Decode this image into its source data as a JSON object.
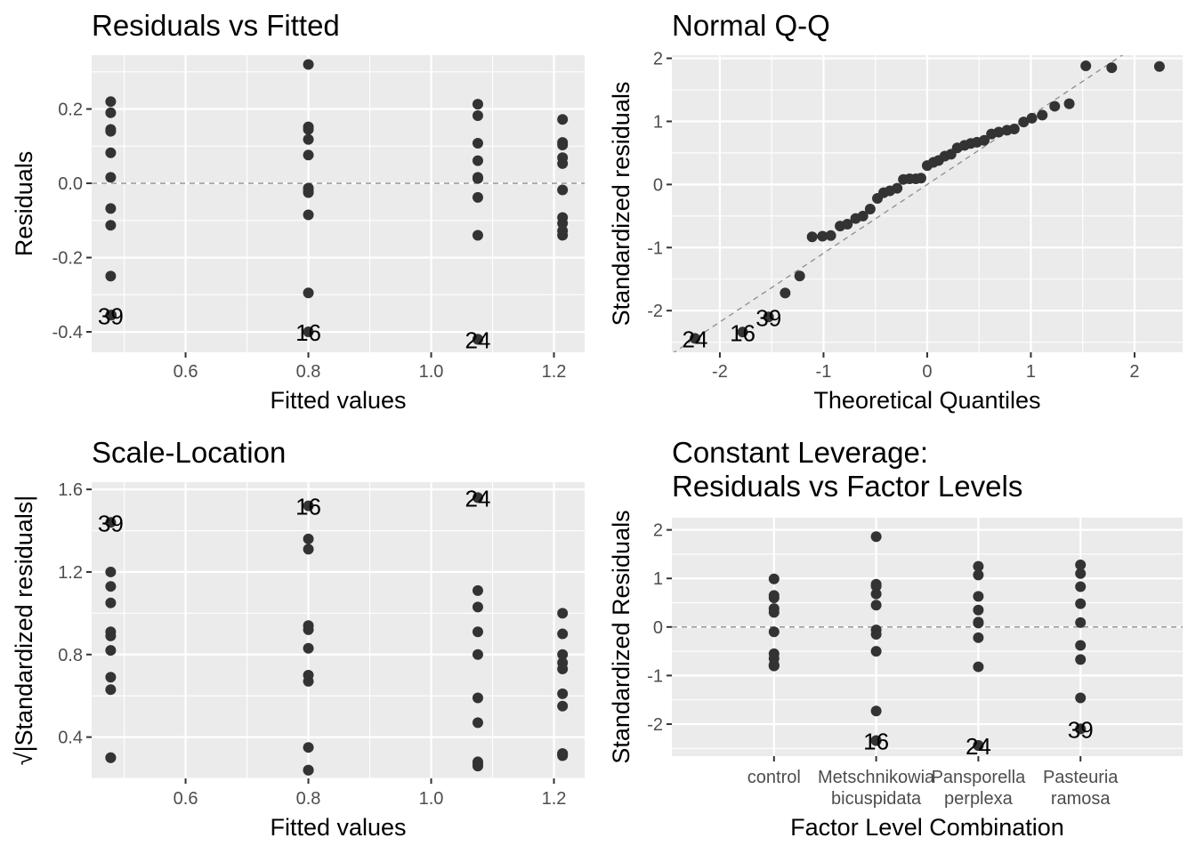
{
  "colors": {
    "panel_background": "#ebebeb",
    "grid": "#ffffff",
    "point": "#333333",
    "tick_text": "#4d4d4d",
    "reference_line": "#8c8c8c"
  },
  "chart_data": [
    {
      "id": "residuals-vs-fitted",
      "type": "scatter",
      "title_lines": [
        "Residuals vs Fitted"
      ],
      "xlabel": "Fitted values",
      "ylabel": "Residuals",
      "xlim": [
        0.447,
        1.25
      ],
      "ylim": [
        -0.455,
        0.345
      ],
      "xticks": [
        0.6,
        0.8,
        1.0,
        1.2
      ],
      "xtick_labels": [
        "0.6",
        "0.8",
        "1.0",
        "1.2"
      ],
      "yticks": [
        -0.4,
        -0.2,
        0.0,
        0.2
      ],
      "ytick_labels": [
        "-0.4",
        "-0.2",
        "0.0",
        "0.2"
      ],
      "hline": 0,
      "x": [
        0.478,
        0.478,
        0.478,
        0.478,
        0.478,
        0.478,
        0.478,
        0.478,
        0.478,
        0.478,
        0.479,
        0.8,
        0.8,
        0.8,
        0.8,
        0.8,
        0.8,
        0.8,
        0.8,
        0.8,
        0.8,
        0.8,
        1.076,
        1.076,
        1.076,
        1.076,
        1.076,
        1.076,
        1.076,
        1.076,
        1.076,
        1.076,
        1.214,
        1.214,
        1.214,
        1.214,
        1.214,
        1.214,
        1.214,
        1.214,
        1.214,
        1.214
      ],
      "y": [
        0.22,
        0.19,
        0.145,
        0.14,
        0.082,
        0.016,
        -0.068,
        -0.113,
        -0.25,
        -0.355,
        -0.355,
        0.32,
        0.152,
        0.145,
        0.118,
        0.076,
        -0.013,
        -0.02,
        -0.025,
        -0.085,
        -0.295,
        -0.4,
        0.213,
        0.182,
        0.108,
        0.061,
        0.016,
        0.013,
        -0.038,
        -0.14,
        -0.42,
        -0.42,
        0.172,
        0.11,
        0.103,
        0.069,
        0.053,
        -0.018,
        -0.092,
        -0.108,
        -0.128,
        -0.14
      ],
      "point_labels": [
        {
          "x": 0.478,
          "y": -0.355,
          "text": "39"
        },
        {
          "x": 0.8,
          "y": -0.4,
          "text": "16"
        },
        {
          "x": 1.076,
          "y": -0.42,
          "text": "24"
        }
      ]
    },
    {
      "id": "normal-qq",
      "type": "scatter",
      "title_lines": [
        "Normal Q-Q"
      ],
      "xlabel": "Theoretical Quantiles",
      "ylabel": "Standardized residuals",
      "xlim": [
        -2.463,
        2.464
      ],
      "ylim": [
        -2.66,
        2.05
      ],
      "xticks": [
        -2,
        -1,
        0,
        1,
        2
      ],
      "xtick_labels": [
        "-2",
        "-1",
        "0",
        "1",
        "2"
      ],
      "yticks": [
        -2,
        -1,
        0,
        1,
        2
      ],
      "ytick_labels": [
        "-2",
        "-1",
        "0",
        "1",
        "2"
      ],
      "reference_line": {
        "intercept": 0,
        "slope": 1.09
      },
      "x": [
        -2.24,
        -1.78,
        -1.53,
        -1.37,
        -1.23,
        -1.11,
        -1.01,
        -0.93,
        -0.84,
        -0.77,
        -0.69,
        -0.62,
        -0.55,
        -0.48,
        -0.42,
        -0.36,
        -0.29,
        -0.23,
        -0.17,
        -0.11,
        -0.06,
        0.0,
        0.06,
        0.11,
        0.17,
        0.23,
        0.29,
        0.36,
        0.42,
        0.48,
        0.55,
        0.62,
        0.69,
        0.77,
        0.84,
        0.93,
        1.01,
        1.11,
        1.23,
        1.37,
        1.53,
        1.78,
        2.24
      ],
      "y": [
        -2.44,
        -2.34,
        -2.1,
        -1.72,
        -1.45,
        -0.83,
        -0.82,
        -0.81,
        -0.66,
        -0.63,
        -0.54,
        -0.5,
        -0.39,
        -0.22,
        -0.13,
        -0.1,
        -0.06,
        0.08,
        0.09,
        0.09,
        0.1,
        0.3,
        0.35,
        0.38,
        0.45,
        0.48,
        0.58,
        0.62,
        0.65,
        0.67,
        0.7,
        0.8,
        0.83,
        0.86,
        0.88,
        0.99,
        1.05,
        1.1,
        1.24,
        1.28,
        1.88,
        1.85,
        1.87
      ],
      "point_labels": [
        {
          "x": -2.24,
          "y": -2.44,
          "text": "24"
        },
        {
          "x": -1.78,
          "y": -2.34,
          "text": "16"
        },
        {
          "x": -1.53,
          "y": -2.1,
          "text": "39"
        }
      ]
    },
    {
      "id": "scale-location",
      "type": "scatter",
      "title_lines": [
        "Scale-Location"
      ],
      "xlabel": "Fitted values",
      "ylabel": "√|Standardized residuals|",
      "xlim": [
        0.447,
        1.25
      ],
      "ylim": [
        0.2,
        1.635
      ],
      "xticks": [
        0.6,
        0.8,
        1.0,
        1.2
      ],
      "xtick_labels": [
        "0.6",
        "0.8",
        "1.0",
        "1.2"
      ],
      "yticks": [
        0.4,
        0.8,
        1.2,
        1.6
      ],
      "ytick_labels": [
        "0.4",
        "0.8",
        "1.2",
        "1.6"
      ],
      "x": [
        0.478,
        0.478,
        0.478,
        0.478,
        0.478,
        0.478,
        0.478,
        0.478,
        0.478,
        0.478,
        0.478,
        0.8,
        0.8,
        0.8,
        0.8,
        0.8,
        0.8,
        0.8,
        0.8,
        0.8,
        0.8,
        0.8,
        1.076,
        1.076,
        1.076,
        1.076,
        1.076,
        1.076,
        1.076,
        1.076,
        1.076,
        1.076,
        1.214,
        1.214,
        1.214,
        1.214,
        1.214,
        1.214,
        1.214,
        1.214,
        1.214,
        1.214
      ],
      "y": [
        1.44,
        1.2,
        1.13,
        1.05,
        0.91,
        0.89,
        0.82,
        0.69,
        0.63,
        0.3,
        0.3,
        1.52,
        1.36,
        1.31,
        0.94,
        0.92,
        0.83,
        0.7,
        0.67,
        0.35,
        0.24,
        0.24,
        1.56,
        1.11,
        1.03,
        0.91,
        0.8,
        0.59,
        0.47,
        0.28,
        0.27,
        0.26,
        1.0,
        0.9,
        0.8,
        0.76,
        0.73,
        0.61,
        0.55,
        0.32,
        0.31,
        0.32
      ],
      "point_labels": [
        {
          "x": 0.478,
          "y": 1.44,
          "text": "39"
        },
        {
          "x": 0.8,
          "y": 1.52,
          "text": "16"
        },
        {
          "x": 1.076,
          "y": 1.56,
          "text": "24"
        }
      ]
    },
    {
      "id": "constant-leverage",
      "type": "scatter",
      "title_lines": [
        "Constant Leverage:",
        "Residuals vs Factor Levels"
      ],
      "xlabel": "Factor Level Combination",
      "ylabel": "Standardized Residuals",
      "xlim": [
        0,
        5
      ],
      "ylim": [
        -2.66,
        2.25
      ],
      "categories": [
        "control",
        "Metschnikowia\nbicuspidata",
        "Pansporella\nperplexa",
        "Pasteuria\nramosa"
      ],
      "category_positions": [
        1,
        2,
        3,
        4
      ],
      "yticks": [
        -2,
        -1,
        0,
        1,
        2
      ],
      "ytick_labels": [
        "-2",
        "-1",
        "0",
        "1",
        "2"
      ],
      "hline": 0,
      "x": [
        1,
        1,
        1,
        1,
        1,
        1,
        1,
        1,
        1,
        1,
        1,
        2,
        2,
        2,
        2,
        2,
        2,
        2,
        2,
        2,
        2,
        2,
        3,
        3,
        3,
        3,
        3,
        3,
        3,
        3,
        3,
        3,
        4,
        4,
        4,
        4,
        4,
        4,
        4,
        4,
        4,
        4
      ],
      "y": [
        0.99,
        0.65,
        0.6,
        0.38,
        0.3,
        -0.1,
        -0.55,
        -0.65,
        -0.78,
        -0.8,
        -0.8,
        1.86,
        0.88,
        0.84,
        0.68,
        0.45,
        -0.06,
        -0.15,
        -0.5,
        -1.73,
        -2.34,
        -2.34,
        1.25,
        1.07,
        0.63,
        0.35,
        0.1,
        0.08,
        -0.22,
        -0.82,
        -2.44,
        -2.44,
        1.28,
        1.1,
        0.83,
        0.48,
        0.09,
        -0.38,
        -0.67,
        -1.46,
        -2.1,
        -2.1
      ],
      "point_labels": [
        {
          "x": 2,
          "y": -2.34,
          "text": "16"
        },
        {
          "x": 3,
          "y": -2.44,
          "text": "24"
        },
        {
          "x": 4,
          "y": -2.1,
          "text": "39"
        }
      ]
    }
  ]
}
